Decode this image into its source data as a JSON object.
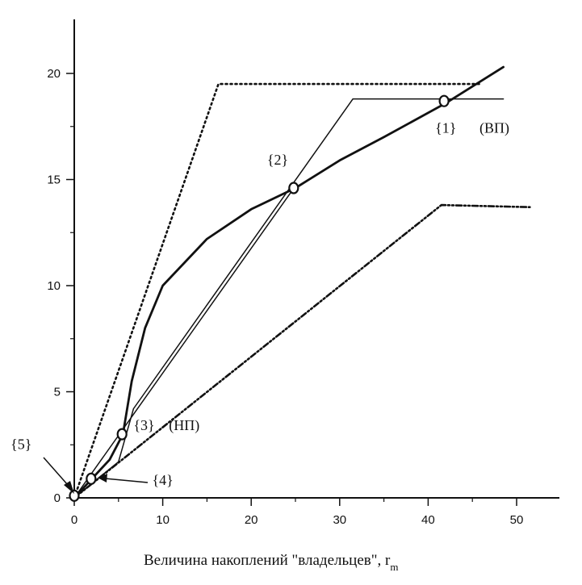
{
  "chart_data": {
    "type": "line",
    "title": "",
    "xlabel": "Величина накоплений \"владельцев\",  r",
    "xlabel_sub": "m",
    "ylabel": "",
    "xlim": [
      0,
      55
    ],
    "ylim": [
      0,
      22
    ],
    "x_ticks": [
      0,
      10,
      20,
      30,
      40,
      50
    ],
    "y_ticks": [
      0,
      5,
      10,
      15,
      20
    ],
    "grid": false,
    "series": [
      {
        "style": "dotted",
        "points": [
          [
            0,
            0
          ],
          [
            16.3,
            19.5
          ],
          [
            46,
            19.5
          ]
        ]
      },
      {
        "style": "solid-thin",
        "points": [
          [
            0,
            0
          ],
          [
            5,
            1.7
          ],
          [
            6.7,
            4.2
          ],
          [
            31.5,
            18.8
          ],
          [
            48.5,
            18.8
          ]
        ]
      },
      {
        "style": "solid-thick",
        "points": [
          [
            0,
            0
          ],
          [
            2,
            0.9
          ],
          [
            4,
            1.8
          ],
          [
            5.5,
            3
          ],
          [
            6.5,
            5.5
          ],
          [
            8,
            8
          ],
          [
            10,
            10
          ],
          [
            15,
            12.2
          ],
          [
            20,
            13.6
          ],
          [
            25,
            14.6
          ],
          [
            30,
            15.9
          ],
          [
            35,
            17
          ],
          [
            42,
            18.6
          ],
          [
            48.5,
            20.3
          ]
        ]
      },
      {
        "style": "solid-thin",
        "points": [
          [
            0,
            0
          ],
          [
            25,
            14.7
          ]
        ]
      },
      {
        "style": "dash-dot-dot",
        "points": [
          [
            0,
            0
          ],
          [
            41.5,
            13.8
          ],
          [
            51.5,
            13.7
          ]
        ]
      }
    ],
    "markers": [
      {
        "label": "{1}",
        "x": 41.8,
        "y": 18.7
      },
      {
        "label": "{2}",
        "x": 24.8,
        "y": 14.6
      },
      {
        "label": "{3}",
        "x": 5.4,
        "y": 3.0
      },
      {
        "label": "{4}",
        "x": 1.9,
        "y": 0.9
      },
      {
        "label": "{5}",
        "x": 0.0,
        "y": 0.1
      }
    ],
    "annotations": [
      {
        "text": "{1}",
        "x": 40.8,
        "y": 17.2
      },
      {
        "text": "(ВП)",
        "x": 45.8,
        "y": 17.2
      },
      {
        "text": "{2}",
        "x": 21.8,
        "y": 15.7
      },
      {
        "text": "{3}",
        "x": 6.7,
        "y": 3.2
      },
      {
        "text": "(НП)",
        "x": 10.7,
        "y": 3.2
      },
      {
        "text": "{4}",
        "x": 8.8,
        "y": 0.6
      },
      {
        "text": "{5}",
        "x": -7.2,
        "y": 2.3
      }
    ]
  }
}
